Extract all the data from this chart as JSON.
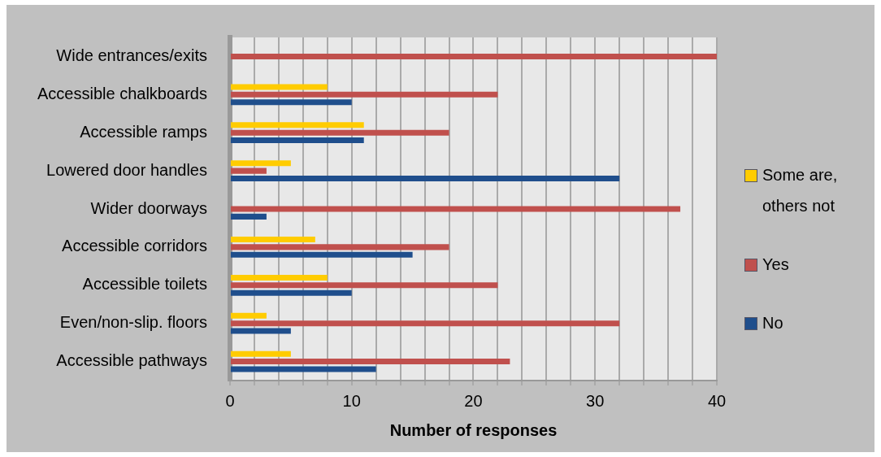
{
  "chart_data": {
    "type": "bar",
    "orientation": "horizontal",
    "xlabel": "Number of responses",
    "categories": [
      "Wide entrances/exits",
      "Accessible chalkboards",
      "Accessible ramps",
      "Lowered door handles",
      "Wider doorways",
      "Accessible corridors",
      "Accessible toilets",
      "Even/non-slip. floors",
      "Accessible pathways"
    ],
    "series": [
      {
        "name": "Some are, others not",
        "color": "#ffcc00",
        "values": [
          0,
          8,
          11,
          5,
          0,
          7,
          8,
          3,
          5
        ]
      },
      {
        "name": "Yes",
        "color": "#c0504d",
        "values": [
          40,
          22,
          18,
          3,
          37,
          18,
          22,
          32,
          23
        ]
      },
      {
        "name": "No",
        "color": "#1f4e8c",
        "values": [
          0,
          10,
          11,
          32,
          3,
          15,
          10,
          5,
          12
        ]
      }
    ],
    "xlim": [
      0,
      40
    ],
    "xticks": [
      0,
      {
        "value": 2,
        "label": null
      },
      {
        "value": 4,
        "label": null
      },
      {
        "value": 6,
        "label": null
      },
      {
        "value": 8,
        "label": null
      },
      10,
      {
        "value": 12,
        "label": null
      },
      {
        "value": 14,
        "label": null
      },
      {
        "value": 16,
        "label": null
      },
      {
        "value": 18,
        "label": null
      },
      20,
      {
        "value": 22,
        "label": null
      },
      {
        "value": 24,
        "label": null
      },
      {
        "value": 26,
        "label": null
      },
      {
        "value": 28,
        "label": null
      },
      30,
      {
        "value": 32,
        "label": null
      },
      {
        "value": 34,
        "label": null
      },
      {
        "value": 36,
        "label": null
      },
      {
        "value": 38,
        "label": null
      },
      40
    ],
    "grid": "x",
    "legend": "right"
  }
}
